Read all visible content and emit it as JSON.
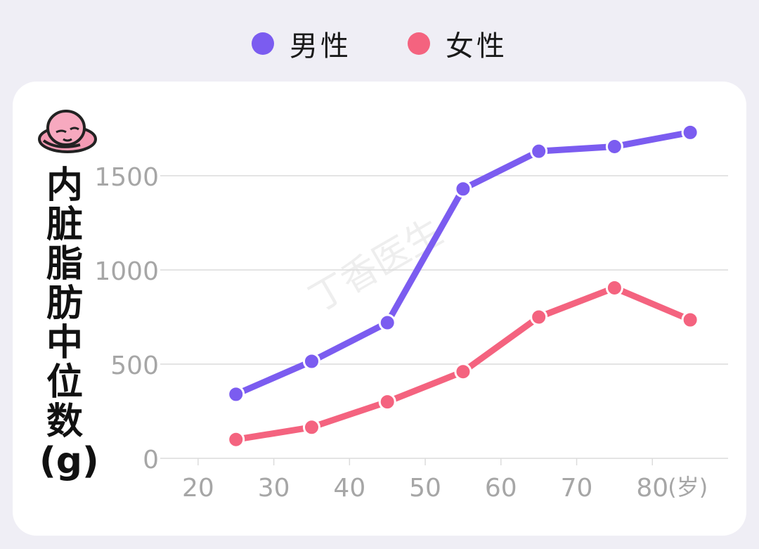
{
  "legend": {
    "male_label": "男性",
    "female_label": "女性"
  },
  "ylabel_text": "内脏脂肪中位数(g)",
  "watermark": "丁香医生",
  "colors": {
    "male": "#7b5cf0",
    "female": "#f4637f",
    "grid": "#dcdcdc",
    "tick_label": "#a6a6a6"
  },
  "chart_data": {
    "type": "line",
    "x": [
      25,
      35,
      45,
      55,
      65,
      75,
      85
    ],
    "series": [
      {
        "name": "男性",
        "values": [
          340,
          515,
          720,
          1430,
          1630,
          1655,
          1730
        ]
      },
      {
        "name": "女性",
        "values": [
          100,
          165,
          300,
          460,
          750,
          905,
          735
        ]
      }
    ],
    "xticks": [
      20,
      30,
      40,
      50,
      60,
      70,
      80
    ],
    "xtick_labels": [
      "20",
      "30",
      "40",
      "50",
      "60",
      "70",
      "80"
    ],
    "xunit": "(岁)",
    "yticks": [
      0,
      500,
      1000,
      1500
    ],
    "ytick_labels": [
      "0",
      "500",
      "1000",
      "1500"
    ],
    "ylabel": "内脏脂肪中位数(g)",
    "xlim": [
      15,
      90
    ],
    "ylim": [
      0,
      1500
    ],
    "grid": true,
    "legend_position": "top-center"
  }
}
